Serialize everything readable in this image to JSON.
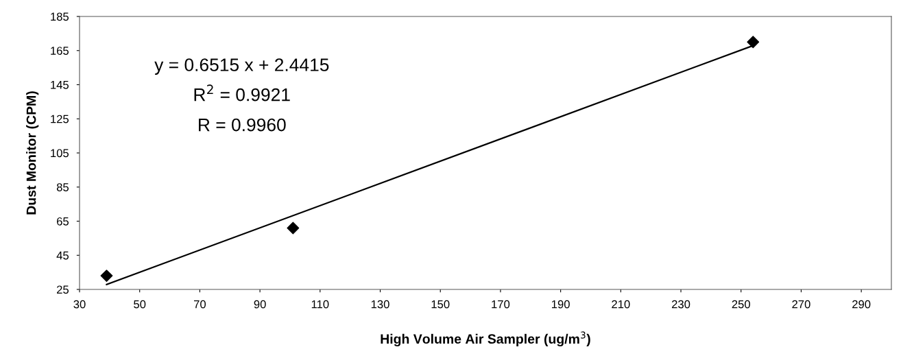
{
  "chart_data": {
    "type": "scatter",
    "xlabel": "High Volume Air Sampler (ug/m$^{3}$)",
    "ylabel": "Dust Monitor (CPM)",
    "xlim": [
      30,
      300
    ],
    "ylim": [
      25,
      185
    ],
    "xticks": [
      30,
      50,
      70,
      90,
      110,
      130,
      150,
      170,
      190,
      210,
      230,
      250,
      270,
      290
    ],
    "yticks": [
      25,
      45,
      65,
      85,
      105,
      125,
      145,
      165,
      185
    ],
    "grid": false,
    "legend": false,
    "marker": "diamond",
    "series": [
      {
        "color": "#000000",
        "x": [
          39,
          101,
          254
        ],
        "values": [
          33,
          61,
          170
        ]
      },
      {
        "type": "line",
        "color": "#000000",
        "x": [
          39,
          254
        ],
        "values": [
          27.9,
          167.9
        ],
        "marker": "none",
        "line_style": "solid"
      }
    ],
    "annotations": [
      "y = 0.6515 x + 2.4415",
      "R$^{2}$ = 0.9921",
      "R = 0.9960"
    ]
  }
}
